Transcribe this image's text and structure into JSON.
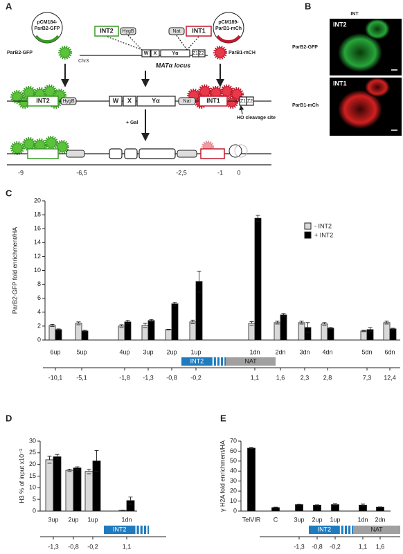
{
  "panel_a": {
    "label": "A",
    "plasmid_left": [
      "pCM184-",
      "ParB2-GFP"
    ],
    "plasmid_right": [
      "pCM189-",
      "ParB1-mCh"
    ],
    "protein_left": "ParB2-GFP",
    "protein_right": "ParB1-mCH",
    "chromosome": "Chr3",
    "locus": "MATα locus",
    "cassettes": {
      "int2": "INT2",
      "hygb": "HygB",
      "nat": "Nat",
      "int1": "INT1"
    },
    "loci": [
      "W",
      "X",
      "Yα",
      "Z1",
      "Z2"
    ],
    "ho_site": "HO cleavage site",
    "induction": "+ Gal",
    "scale": [
      "-9",
      "-6,5",
      "-2,5",
      "-1",
      "0"
    ]
  },
  "panel_b": {
    "label": "B",
    "column": "INT",
    "rows": [
      {
        "name": "ParB2-GFP",
        "insert": "INT2"
      },
      {
        "name": "ParB1-mCh",
        "insert": "INT1"
      }
    ]
  },
  "chart_data": [
    {
      "type": "bar",
      "panel": "C",
      "ylabel": "ParB2-GFP fold enrichment/HA",
      "categories": [
        "6up",
        "5up",
        "4up",
        "3up",
        "2up",
        "1up",
        "1dn",
        "2dn",
        "3dn",
        "4dn",
        "5dn",
        "6dn"
      ],
      "coordinates": [
        "-10,1",
        "-5,1",
        "-1,8",
        "-1,3",
        "-0,8",
        "-0,2",
        "1,1",
        "1,6",
        "2,3",
        "2,8",
        "7,3",
        "12,4"
      ],
      "map_labels": [
        "INT2",
        "NAT"
      ],
      "series": [
        {
          "name": "- INT2",
          "color": "#d9d9d9",
          "values": [
            2.1,
            2.4,
            2.0,
            2.1,
            1.5,
            2.6,
            2.4,
            2.5,
            2.5,
            2.3,
            1.3,
            2.5
          ],
          "errors": [
            0.15,
            0.2,
            0.2,
            0.3,
            0.05,
            0.25,
            0.25,
            0.2,
            0.2,
            0.2,
            0.1,
            0.2
          ]
        },
        {
          "name": "+ INT2",
          "color": "#000000",
          "values": [
            1.5,
            1.3,
            2.6,
            2.8,
            5.2,
            8.4,
            17.5,
            3.6,
            1.8,
            1.7,
            1.5,
            1.6
          ],
          "errors": [
            0.1,
            0.1,
            0.2,
            0.15,
            0.2,
            1.5,
            0.4,
            0.2,
            0.7,
            0.1,
            0.3,
            0.1
          ]
        }
      ],
      "ylim": [
        0,
        20
      ],
      "yticks": [
        0,
        2,
        4,
        6,
        8,
        10,
        12,
        14,
        16,
        18,
        20
      ]
    },
    {
      "type": "bar",
      "panel": "D",
      "ylabel": "H3 % of input x10⁻³",
      "categories": [
        "3up",
        "2up",
        "1up",
        "1dn"
      ],
      "coordinates": [
        "-1,3",
        "-0,8",
        "-0,2",
        "1,1"
      ],
      "map_labels": [
        "INT2"
      ],
      "series": [
        {
          "color": "#d9d9d9",
          "values": [
            22,
            17.5,
            17,
            0.3
          ],
          "errors": [
            1.5,
            0.5,
            1,
            0.1
          ]
        },
        {
          "color": "#000000",
          "values": [
            23.3,
            18.5,
            21.5,
            4.5
          ],
          "errors": [
            1,
            0.5,
            4.5,
            1.5
          ]
        }
      ],
      "ylim": [
        0,
        30
      ],
      "yticks": [
        0,
        5,
        10,
        15,
        20,
        25,
        30
      ]
    },
    {
      "type": "bar",
      "panel": "E",
      "ylabel": "γ H2A fold enrichment/HA",
      "categories": [
        "TelVIR",
        "C",
        "3up",
        "2up",
        "1up",
        "1dn",
        "2dn"
      ],
      "coordinates": [
        "-1,3",
        "-0,8",
        "-0,2",
        "1,1",
        "1,6"
      ],
      "map_labels": [
        "INT2",
        "NAT"
      ],
      "series": [
        {
          "color": "#000000",
          "values": [
            63,
            3.5,
            6.5,
            6,
            6.5,
            6,
            4
          ],
          "errors": [
            0.5,
            0.5,
            0.3,
            0.3,
            0.8,
            1,
            0.2
          ]
        }
      ],
      "ylim": [
        0,
        70
      ],
      "yticks": [
        0,
        10,
        20,
        30,
        40,
        50,
        60,
        70
      ]
    }
  ]
}
